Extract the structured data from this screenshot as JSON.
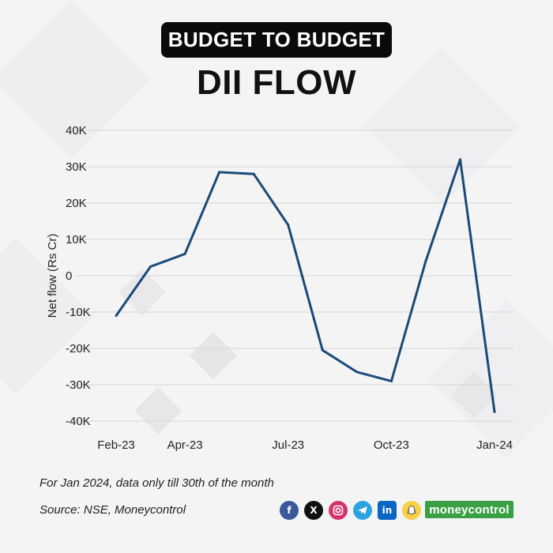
{
  "header": {
    "tag": "BUDGET TO BUDGET",
    "title": "DII FLOW"
  },
  "chart_data": {
    "type": "line",
    "title": "DII FLOW",
    "ylabel": "Net flow (Rs Cr)",
    "xlabel": "",
    "ylim": [
      -40000,
      40000
    ],
    "yticks": [
      40000,
      30000,
      20000,
      10000,
      0,
      -10000,
      -20000,
      -30000,
      -40000
    ],
    "ytick_labels": [
      "40K",
      "30K",
      "20K",
      "10K",
      "0",
      "-10K",
      "-20K",
      "-30K",
      "-40K"
    ],
    "x": [
      "Feb-23",
      "Mar-23",
      "Apr-23",
      "May-23",
      "Jun-23",
      "Jul-23",
      "Aug-23",
      "Sep-23",
      "Oct-23",
      "Nov-23",
      "Dec-23",
      "Jan-24"
    ],
    "xtick_labels": [
      "Feb-23",
      "Apr-23",
      "Jul-23",
      "Oct-23",
      "Jan-24"
    ],
    "series": [
      {
        "values": [
          -11000,
          2500,
          6000,
          28500,
          28000,
          14000,
          -20500,
          -26500,
          -29000,
          4000,
          32000,
          -37500
        ]
      }
    ],
    "grid": true,
    "line_color": "#1a4a78"
  },
  "footer": {
    "note": "For Jan 2024, data only till 30th of the month",
    "source": "Source: NSE, Moneycontrol",
    "brand": "moneycontrol",
    "social_icons": [
      "facebook-icon",
      "x-icon",
      "instagram-icon",
      "telegram-icon",
      "linkedin-icon",
      "snapchat-icon"
    ]
  }
}
